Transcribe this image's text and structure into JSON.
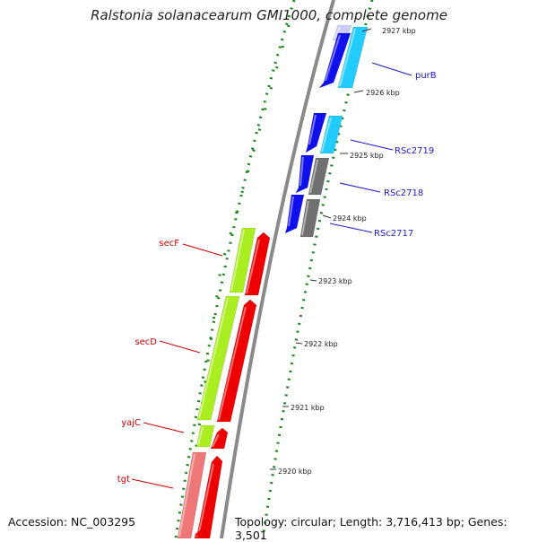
{
  "title": "Ralstonia solanacearum GMI1000, complete genome",
  "footer": {
    "accession": "Accession: NC_003295",
    "summary": "Topology: circular; Length: 3,716,413 bp; Genes: 3,501"
  },
  "ticks": [
    {
      "label": "2927 kbp",
      "kbp": 2927
    },
    {
      "label": "2926 kbp",
      "kbp": 2926
    },
    {
      "label": "2925 kbp",
      "kbp": 2925
    },
    {
      "label": "2924 kbp",
      "kbp": 2924
    },
    {
      "label": "2923 kbp",
      "kbp": 2923
    },
    {
      "label": "2922 kbp",
      "kbp": 2922
    },
    {
      "label": "2921 kbp",
      "kbp": 2921
    },
    {
      "label": "2920 kbp",
      "kbp": 2920
    }
  ],
  "labels": [
    {
      "text": "purB",
      "side": "right",
      "color": "#1a1acc"
    },
    {
      "text": "RSc2719",
      "side": "right",
      "color": "#1a1acc"
    },
    {
      "text": "RSc2718",
      "side": "right",
      "color": "#1a1acc"
    },
    {
      "text": "RSc2717",
      "side": "right",
      "color": "#1a1acc"
    },
    {
      "text": "secF",
      "side": "left",
      "color": "#cc0000"
    },
    {
      "text": "secD",
      "side": "left",
      "color": "#cc0000"
    },
    {
      "text": "yajC",
      "side": "left",
      "color": "#cc0000"
    },
    {
      "text": "tgt",
      "side": "left",
      "color": "#cc0000"
    }
  ],
  "colors": {
    "backbone": "#8a8a8a",
    "cds_forward": "#1010ee",
    "cds_reverse": "#ee0000",
    "cog_cyan": "#22ccff",
    "cog_grey": "#707070",
    "cog_green": "#aaee22",
    "cog_pink": "#ee7777",
    "cog_lavender": "#ccccff",
    "dotted_ring": "#118811"
  }
}
